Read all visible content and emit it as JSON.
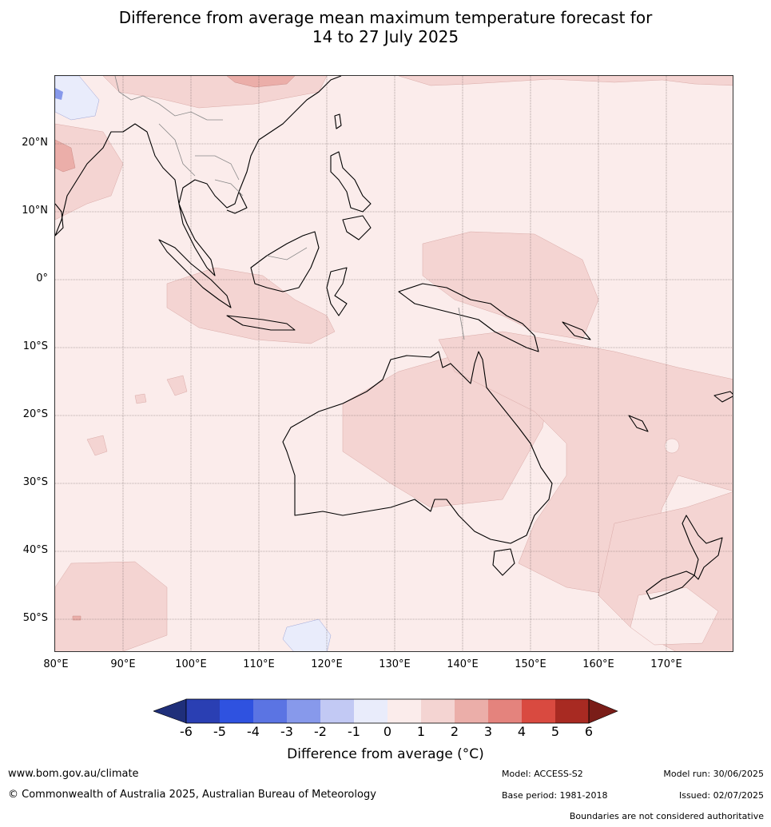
{
  "title": {
    "line1": "Difference from average mean maximum temperature forecast for",
    "line2": "14 to 27 July 2025"
  },
  "map": {
    "lat_labels": [
      "20°N",
      "10°N",
      "0°",
      "10°S",
      "20°S",
      "30°S",
      "40°S",
      "50°S"
    ],
    "lon_labels": [
      "80°E",
      "90°E",
      "100°E",
      "110°E",
      "120°E",
      "130°E",
      "140°E",
      "150°E",
      "160°E",
      "170°E"
    ],
    "dominant_category": "0 to 1",
    "colors": {
      "zero_to_one": "#fbeceb",
      "one_to_two": "#f4d4d2",
      "two_to_three": "#ebaea9",
      "minus_one_to_zero": "#e9ecfb",
      "coastline": "#000000",
      "border": "#888888"
    }
  },
  "colorbar": {
    "ticks": [
      "-6",
      "-5",
      "-4",
      "-3",
      "-2",
      "-1",
      "0",
      "1",
      "2",
      "3",
      "4",
      "5",
      "6"
    ],
    "colors": [
      "#1f2f7a",
      "#2a3fb3",
      "#2f52e0",
      "#5b74e3",
      "#8799eb",
      "#c2c9f4",
      "#e9ecfb",
      "#fbeceb",
      "#f4d4d2",
      "#ebaea9",
      "#e4837d",
      "#d94a40",
      "#a82a22",
      "#7a1d18"
    ],
    "label": "Difference from average (°C)"
  },
  "footer": {
    "website": "www.bom.gov.au/climate",
    "copyright": "© Commonwealth of Australia 2025, Australian Bureau of Meteorology",
    "model": "Model: ACCESS-S2",
    "base_period": "Base period: 1981-2018",
    "model_run": "Model run: 30/06/2025",
    "issued": "Issued: 02/07/2025",
    "disclaimer": "Boundaries are not considered authoritative"
  }
}
